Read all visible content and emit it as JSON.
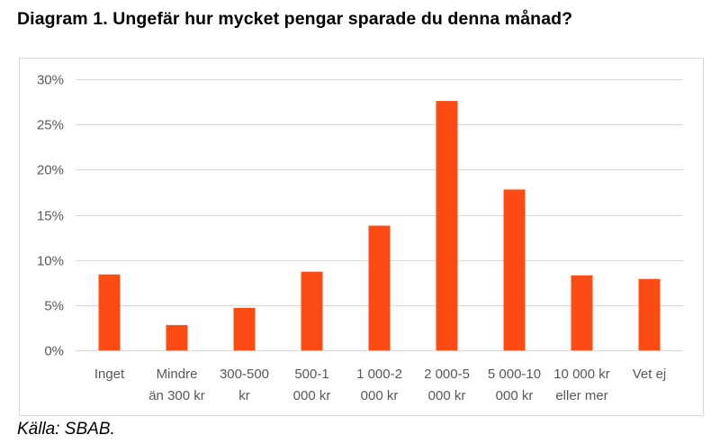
{
  "title": "Diagram 1. Ungefär hur mycket pengar sparade du denna månad?",
  "source": "Källa: SBAB.",
  "colors": {
    "bar": "#fc4c14",
    "grid": "#d9d9d9",
    "axis_text": "#595959"
  },
  "chart_data": {
    "type": "bar",
    "title": "",
    "xlabel": "",
    "ylabel": "",
    "categories": [
      [
        "Inget"
      ],
      [
        "Mindre",
        "än 300 kr"
      ],
      [
        "300-500",
        "kr"
      ],
      [
        "500-1",
        "000 kr"
      ],
      [
        "1 000-2",
        "000 kr"
      ],
      [
        "2 000-5",
        "000 kr"
      ],
      [
        "5 000-10",
        "000 kr"
      ],
      [
        "10 000 kr",
        "eller mer"
      ],
      [
        "Vet ej"
      ]
    ],
    "values": [
      8.4,
      2.8,
      4.7,
      8.7,
      13.8,
      27.6,
      17.8,
      8.3,
      7.9
    ],
    "ylim": [
      0,
      30
    ],
    "yticks": [
      {
        "value": 0,
        "label": "0%"
      },
      {
        "value": 5,
        "label": "5%"
      },
      {
        "value": 10,
        "label": "10%"
      },
      {
        "value": 15,
        "label": "15%"
      },
      {
        "value": 20,
        "label": "20%"
      },
      {
        "value": 25,
        "label": "25%"
      },
      {
        "value": 30,
        "label": "30%"
      }
    ],
    "grid": true,
    "legend": "none"
  }
}
